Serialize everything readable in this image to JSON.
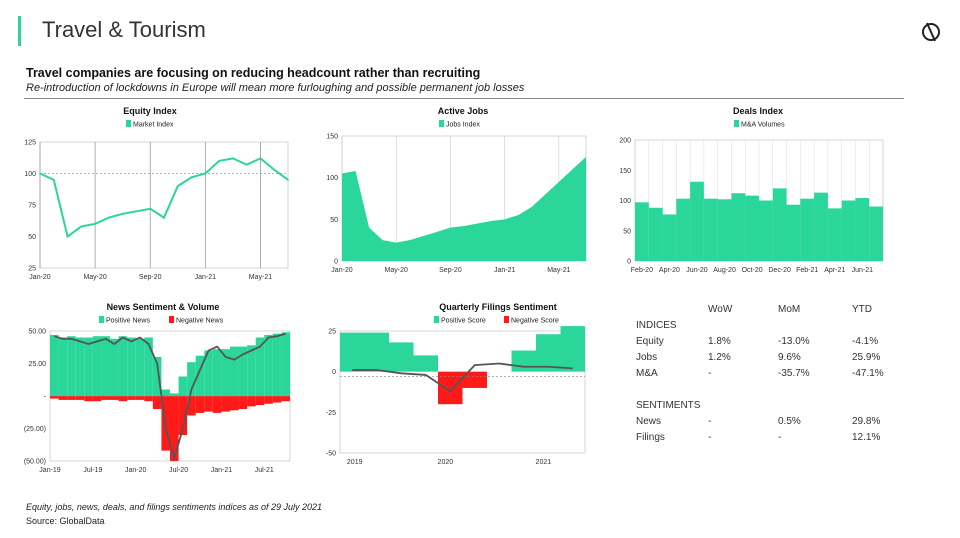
{
  "header": {
    "title": "Travel & Tourism",
    "headline": "Travel companies are focusing on reducing headcount rather than recruiting",
    "subheadline": "Re-introduction of lockdowns in Europe will mean more furloughing and possible permanent job losses"
  },
  "colors": {
    "accent": "#2ad69a",
    "negative": "#ff1a1a",
    "line": "#555555",
    "grid": "#999999"
  },
  "chart_data": [
    {
      "id": "equity",
      "type": "line",
      "title": "Equity Index",
      "legend": [
        "Market Index"
      ],
      "ylim": [
        25,
        125
      ],
      "yticks": [
        "125",
        "100",
        "75",
        "50",
        "25"
      ],
      "xticks": [
        "Jan-20",
        "May-20",
        "Sep-20",
        "Jan-21",
        "May-21"
      ],
      "x": [
        "2020-01",
        "2020-02",
        "2020-03",
        "2020-04",
        "2020-05",
        "2020-06",
        "2020-07",
        "2020-08",
        "2020-09",
        "2020-10",
        "2020-11",
        "2020-12",
        "2021-01",
        "2021-02",
        "2021-03",
        "2021-04",
        "2021-05",
        "2021-06",
        "2021-07"
      ],
      "values": [
        100,
        95,
        50,
        58,
        60,
        65,
        68,
        70,
        72,
        65,
        90,
        97,
        100,
        110,
        112,
        107,
        112,
        103,
        95
      ]
    },
    {
      "id": "jobs",
      "type": "area",
      "title": "Active Jobs",
      "legend": [
        "Jobs Index"
      ],
      "ylim": [
        0,
        150
      ],
      "yticks": [
        "150",
        "100",
        "50",
        "0"
      ],
      "xticks": [
        "Jan-20",
        "May-20",
        "Sep-20",
        "Jan-21",
        "May-21"
      ],
      "x": [
        "2020-01",
        "2020-02",
        "2020-03",
        "2020-04",
        "2020-05",
        "2020-06",
        "2020-07",
        "2020-08",
        "2020-09",
        "2020-10",
        "2020-11",
        "2020-12",
        "2021-01",
        "2021-02",
        "2021-03",
        "2021-04",
        "2021-05",
        "2021-06",
        "2021-07"
      ],
      "values": [
        105,
        108,
        40,
        25,
        22,
        25,
        30,
        35,
        40,
        42,
        45,
        48,
        50,
        55,
        65,
        80,
        95,
        110,
        125
      ]
    },
    {
      "id": "deals",
      "type": "bar",
      "title": "Deals Index",
      "legend": [
        "M&A Volumes"
      ],
      "ylim": [
        0,
        200
      ],
      "yticks": [
        "200",
        "150",
        "100",
        "50",
        "0"
      ],
      "xticks": [
        "Feb-20",
        "Apr-20",
        "Jun-20",
        "Aug-20",
        "Oct-20",
        "Dec-20",
        "Feb-21",
        "Apr-21",
        "Jun-21"
      ],
      "categories": [
        "Feb-20",
        "Mar-20",
        "Apr-20",
        "May-20",
        "Jun-20",
        "Jul-20",
        "Aug-20",
        "Sep-20",
        "Oct-20",
        "Nov-20",
        "Dec-20",
        "Jan-21",
        "Feb-21",
        "Mar-21",
        "Apr-21",
        "May-21",
        "Jun-21",
        "Jul-21"
      ],
      "values": [
        97,
        88,
        77,
        103,
        131,
        103,
        102,
        112,
        108,
        100,
        120,
        93,
        103,
        113,
        87,
        100,
        104,
        90
      ]
    },
    {
      "id": "news",
      "type": "bar",
      "title": "News Sentiment & Volume",
      "legend": [
        "Positive News",
        "Negative News"
      ],
      "ylim": [
        -50,
        50
      ],
      "yticks": [
        "50.00",
        "25.00",
        "-",
        "(25.00)",
        "(50.00)"
      ],
      "xticks": [
        "Jan-19",
        "Jul-19",
        "Jan-20",
        "Jul-20",
        "Jan-21",
        "Jul-21"
      ],
      "positive": [
        47,
        45,
        46,
        45,
        45,
        46,
        46,
        44,
        46,
        45,
        44,
        45,
        30,
        5,
        2,
        15,
        26,
        31,
        35,
        36,
        36,
        38,
        38,
        39,
        45,
        47,
        48,
        49
      ],
      "negative": [
        -2,
        -3,
        -3,
        -3,
        -4,
        -4,
        -3,
        -3,
        -4,
        -3,
        -3,
        -4,
        -10,
        -42,
        -50,
        -30,
        -15,
        -13,
        -12,
        -13,
        -12,
        -11,
        -10,
        -8,
        -7,
        -6,
        -5,
        -4
      ],
      "line": [
        46,
        44,
        44,
        42,
        40,
        42,
        44,
        40,
        45,
        42,
        45,
        40,
        25,
        -25,
        -48,
        -25,
        5,
        20,
        35,
        38,
        30,
        28,
        32,
        35,
        38,
        45,
        46,
        48
      ]
    },
    {
      "id": "filings",
      "type": "bar",
      "title": "Quarterly Filings Sentiment",
      "legend": [
        "Positive Score",
        "Negative Score"
      ],
      "ylim": [
        -50,
        25
      ],
      "yticks": [
        "25",
        "0",
        "-25",
        "-50"
      ],
      "xticks": [
        "2019",
        "2020",
        "2021"
      ],
      "positive": [
        24,
        24,
        18,
        10,
        0,
        0,
        0,
        13,
        23,
        28
      ],
      "negative": [
        0,
        0,
        0,
        0,
        -20,
        -10,
        0,
        0,
        0,
        0
      ],
      "line": [
        1,
        1,
        -1,
        -2,
        -12,
        4,
        5,
        3,
        3,
        2
      ]
    }
  ],
  "summary": {
    "headers": [
      "WoW",
      "MoM",
      "YTD"
    ],
    "indices_label": "INDICES",
    "indices": [
      {
        "name": "Equity",
        "wow": "1.8%",
        "mom": "-13.0%",
        "ytd": "-4.1%"
      },
      {
        "name": "Jobs",
        "wow": "1.2%",
        "mom": "9.6%",
        "ytd": "25.9%"
      },
      {
        "name": "M&A",
        "wow": "-",
        "mom": "-35.7%",
        "ytd": "-47.1%"
      }
    ],
    "sentiments_label": "SENTIMENTS",
    "sentiments": [
      {
        "name": "News",
        "wow": "-",
        "mom": "0.5%",
        "ytd": "29.8%"
      },
      {
        "name": "Filings",
        "wow": "-",
        "mom": "-",
        "ytd": "12.1%"
      }
    ]
  },
  "footer": {
    "note": "Equity, jobs, news, deals, and filings sentiments indices as of 29 July 2021",
    "source": "Source: GlobalData"
  }
}
